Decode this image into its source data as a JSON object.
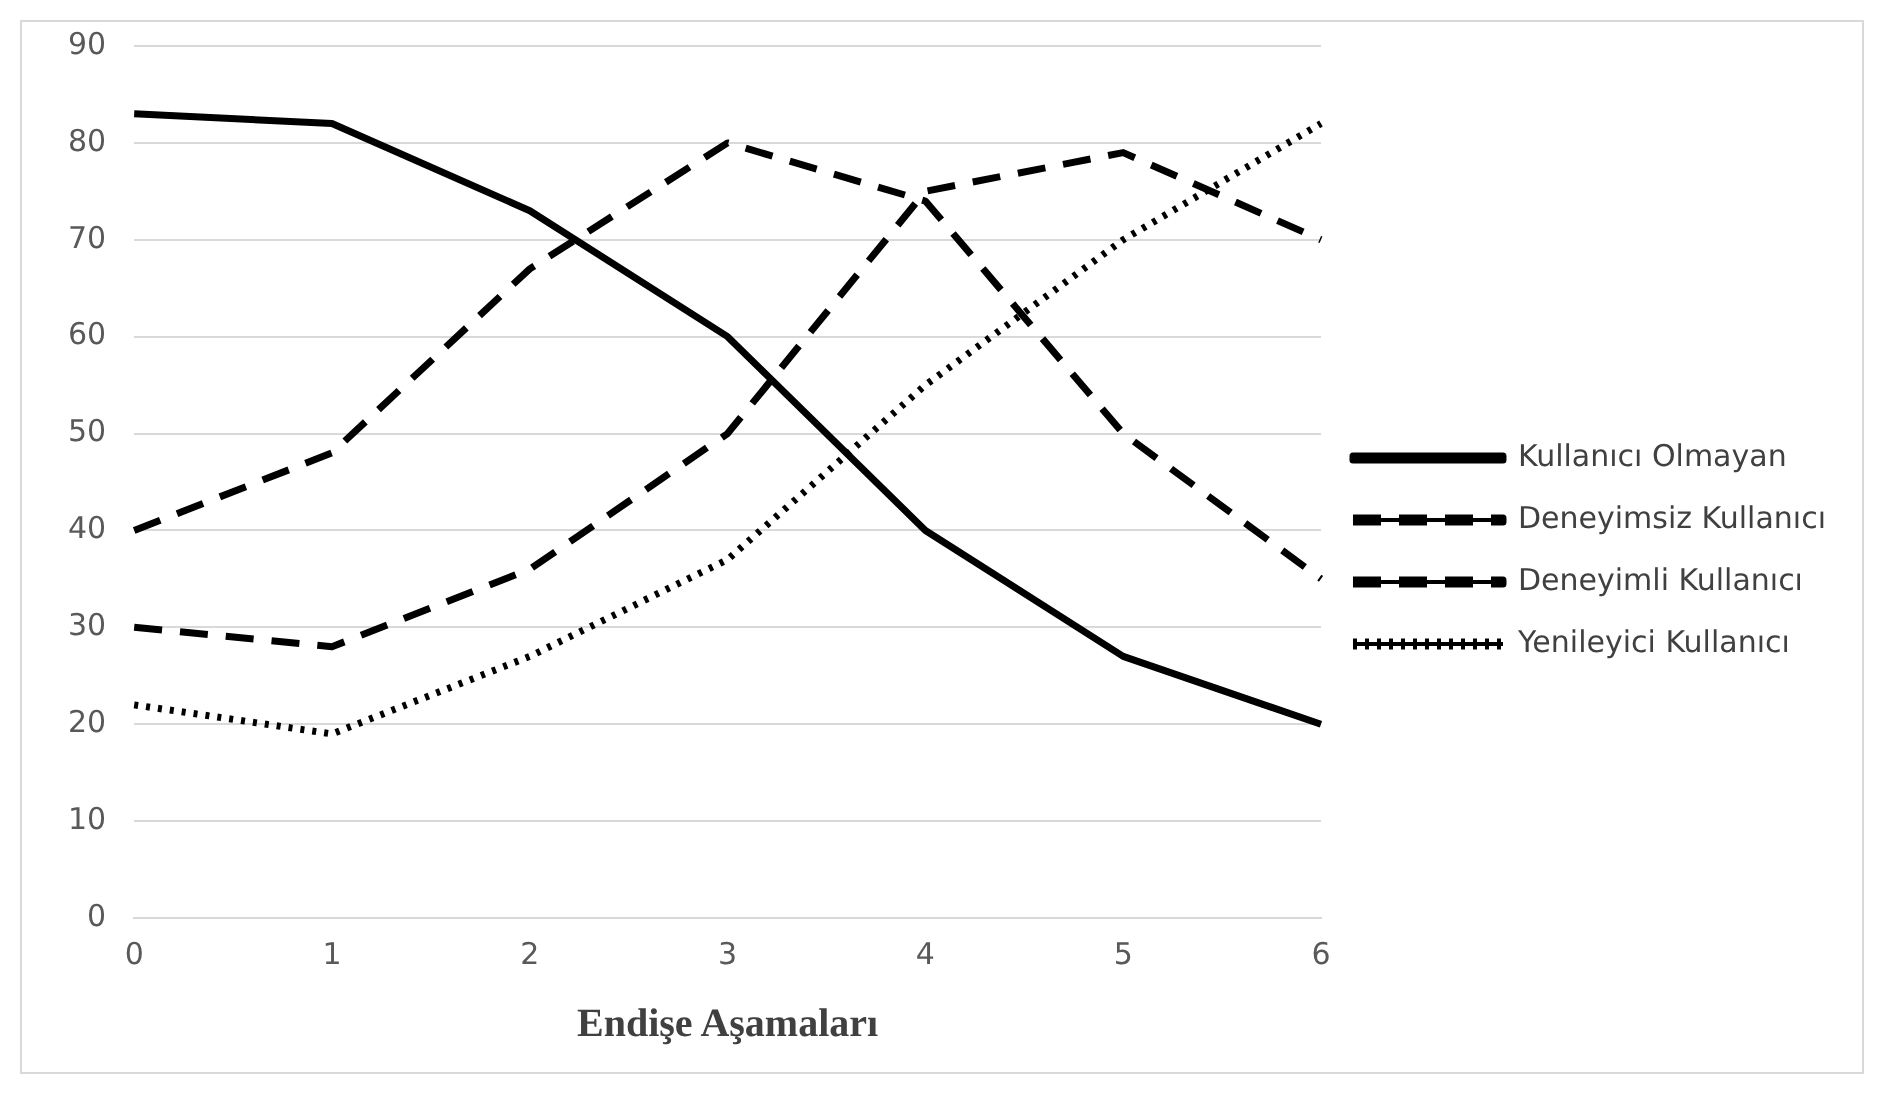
{
  "chart_data": {
    "type": "line",
    "xlabel": "Endişe Aşamaları",
    "categories": [
      "0",
      "1",
      "2",
      "3",
      "4",
      "5",
      "6"
    ],
    "series": [
      {
        "name": "Kullanıcı Olmayan",
        "color": "#000000",
        "line_style": "solid",
        "values": [
          83,
          82,
          73,
          60,
          40,
          27,
          20
        ]
      },
      {
        "name": "Deneyimsiz Kullanıcı",
        "color": "#000000",
        "line_style": "dashed",
        "values": [
          40,
          48,
          67,
          80,
          74,
          50,
          35
        ]
      },
      {
        "name": "Deneyimli Kullanıcı",
        "color": "#000000",
        "line_style": "dashed",
        "values": [
          30,
          28,
          36,
          50,
          75,
          79,
          70
        ]
      },
      {
        "name": "Yenileyici Kullanıcı",
        "color": "#000000",
        "line_style": "dotted",
        "values": [
          22,
          19,
          27,
          37,
          55,
          70,
          82
        ]
      }
    ],
    "ylim": [
      0,
      90
    ],
    "yticks": [
      0,
      10,
      20,
      30,
      40,
      50,
      60,
      70,
      80,
      90
    ],
    "grid": "y",
    "legend": "right",
    "marker": "none"
  }
}
